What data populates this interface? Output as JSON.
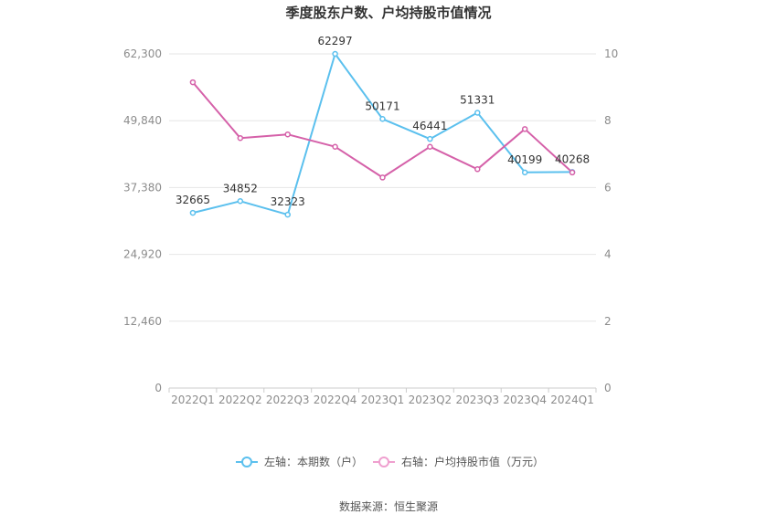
{
  "chart_data": {
    "type": "line",
    "title": "季度股东户数、户均持股市值情况",
    "categories": [
      "2022Q1",
      "2022Q2",
      "2022Q3",
      "2022Q4",
      "2023Q1",
      "2023Q2",
      "2023Q3",
      "2023Q4",
      "2024Q1"
    ],
    "series": [
      {
        "name": "左轴：本期数（户）",
        "axis": "left",
        "color": "#5bc0ee",
        "values": [
          32665,
          34852,
          32323,
          62297,
          50171,
          46441,
          51331,
          40199,
          40268
        ],
        "data_labels": [
          "32665",
          "34852",
          "32323",
          "62297",
          "50171",
          "46441",
          "51331",
          "40199",
          "40268"
        ]
      },
      {
        "name": "右轴：户均持股市值（万元）",
        "axis": "right",
        "color": "#d561a9",
        "values": [
          9.15,
          7.48,
          7.59,
          7.22,
          6.3,
          7.22,
          6.55,
          7.75,
          6.45
        ]
      }
    ],
    "left_axis": {
      "ylim": [
        0,
        62300
      ],
      "tick_labels": [
        "0",
        "12,460",
        "24,920",
        "37,380",
        "49,840",
        "62,300"
      ]
    },
    "right_axis": {
      "ylim": [
        0,
        10
      ],
      "tick_labels": [
        "0",
        "2",
        "4",
        "6",
        "8",
        "10"
      ]
    },
    "grid": true,
    "legend_position": "bottom",
    "source": "数据来源：恒生聚源"
  }
}
